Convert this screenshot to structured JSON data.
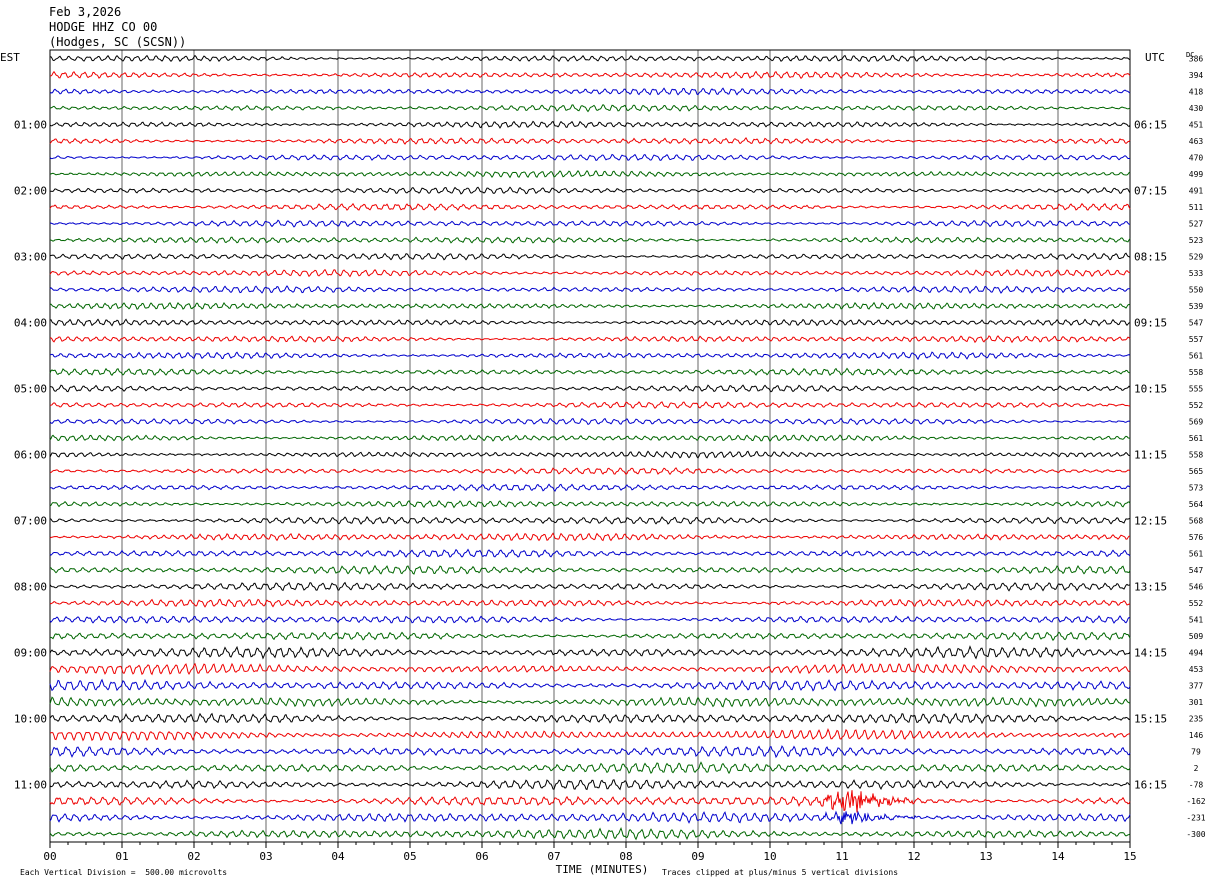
{
  "header": {
    "date": "Feb 3,2026",
    "station": "HODGE HHZ CO 00",
    "location": "(Hodges, SC (SCSN))"
  },
  "chart_data": {
    "type": "line",
    "title": "",
    "left_timezone": "EST",
    "right_timezone": "UTC",
    "dc_label": "DC",
    "xlabel": "TIME (MINUTES)",
    "xlim": [
      0,
      15
    ],
    "x_ticks": [
      "00",
      "01",
      "02",
      "03",
      "04",
      "05",
      "06",
      "07",
      "08",
      "09",
      "10",
      "11",
      "12",
      "13",
      "14",
      "15"
    ],
    "grid": true,
    "trace_colors": [
      "#000000",
      "#ee0000",
      "#0000cc",
      "#006600"
    ],
    "rows": 48,
    "left_hour_labels": [
      "01:00",
      "02:00",
      "03:00",
      "04:00",
      "05:00",
      "06:00",
      "07:00",
      "08:00",
      "09:00",
      "10:00",
      "11:00"
    ],
    "right_hour_labels": [
      "06:15",
      "07:15",
      "08:15",
      "09:15",
      "10:15",
      "11:15",
      "12:15",
      "13:15",
      "14:15",
      "15:15",
      "16:15"
    ],
    "dc_offsets": [
      386,
      394,
      418,
      430,
      451,
      463,
      470,
      499,
      491,
      511,
      527,
      523,
      529,
      533,
      550,
      539,
      547,
      557,
      561,
      558,
      555,
      552,
      569,
      561,
      558,
      565,
      573,
      564,
      568,
      576,
      561,
      547,
      546,
      552,
      541,
      509,
      494,
      453,
      377,
      301,
      235,
      146,
      79,
      2,
      -78,
      -162,
      -231,
      -300
    ],
    "events": [
      {
        "row": 45,
        "minute": 11.1,
        "label": ""
      },
      {
        "row": 46,
        "minute": 11.15,
        "label": ""
      }
    ],
    "footer_left": "Each Vertical Division =  500.00 microvolts",
    "footer_right": "Traces clipped at plus/minus 5 vertical divisions"
  }
}
